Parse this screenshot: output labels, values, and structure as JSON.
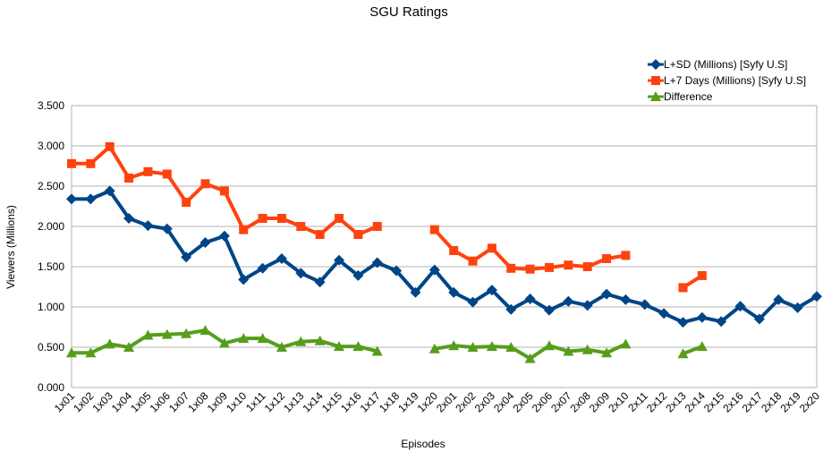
{
  "chart_data": {
    "type": "line",
    "title": "SGU Ratings",
    "xlabel": "Episodes",
    "ylabel": "Viewers (Millions)",
    "ylim": [
      0,
      3.5
    ],
    "y_ticks": [
      "0.000",
      "0.500",
      "1.000",
      "1.500",
      "2.000",
      "2.500",
      "3.000",
      "3.500"
    ],
    "grid": "horizontal",
    "legend_position": "top-right",
    "categories": [
      "1x01",
      "1x02",
      "1x03",
      "1x04",
      "1x05",
      "1x06",
      "1x07",
      "1x08",
      "1x09",
      "1x10",
      "1x11",
      "1x12",
      "1x13",
      "1x14",
      "1x15",
      "1x16",
      "1x17",
      "1x18",
      "1x19",
      "1x20",
      "2x01",
      "2x02",
      "2x03",
      "2x04",
      "2x05",
      "2x06",
      "2x07",
      "2x08",
      "2x09",
      "2x10",
      "2x11",
      "2x12",
      "2x13",
      "2x14",
      "2x15",
      "2x16",
      "2x17",
      "2x18",
      "2x19",
      "2x20"
    ],
    "series": [
      {
        "name": "L+SD (Millions) [Syfy U.S]",
        "color": "#004586",
        "marker": "diamond",
        "values": [
          2.34,
          2.34,
          2.44,
          2.1,
          2.01,
          1.97,
          1.62,
          1.8,
          1.88,
          1.34,
          1.48,
          1.6,
          1.42,
          1.31,
          1.58,
          1.39,
          1.55,
          1.45,
          1.18,
          1.46,
          1.18,
          1.06,
          1.21,
          0.97,
          1.1,
          0.96,
          1.07,
          1.02,
          1.16,
          1.09,
          1.03,
          0.92,
          0.81,
          0.87,
          0.82,
          1.01,
          0.85,
          1.09,
          0.99,
          1.13
        ]
      },
      {
        "name": "L+7 Days (Millions) [Syfy U.S]",
        "color": "#ff420e",
        "marker": "square",
        "values": [
          2.78,
          2.78,
          2.99,
          2.6,
          2.68,
          2.65,
          2.3,
          2.53,
          2.44,
          1.96,
          2.1,
          2.1,
          2.0,
          1.9,
          2.1,
          1.9,
          2.0,
          null,
          null,
          1.96,
          1.7,
          1.57,
          1.73,
          1.48,
          1.47,
          1.49,
          1.52,
          1.5,
          1.6,
          1.64,
          null,
          null,
          1.24,
          1.39,
          null,
          null,
          null,
          null,
          null,
          null
        ]
      },
      {
        "name": "Difference",
        "color": "#579d1c",
        "marker": "triangle",
        "values": [
          0.43,
          0.43,
          0.54,
          0.5,
          0.65,
          0.66,
          0.67,
          0.71,
          0.55,
          0.61,
          0.61,
          0.5,
          0.57,
          0.58,
          0.51,
          0.51,
          0.45,
          null,
          null,
          0.48,
          0.52,
          0.5,
          0.51,
          0.5,
          0.36,
          0.52,
          0.45,
          0.47,
          0.43,
          0.54,
          null,
          null,
          0.42,
          0.51,
          null,
          null,
          null,
          null,
          null,
          null
        ]
      }
    ]
  }
}
